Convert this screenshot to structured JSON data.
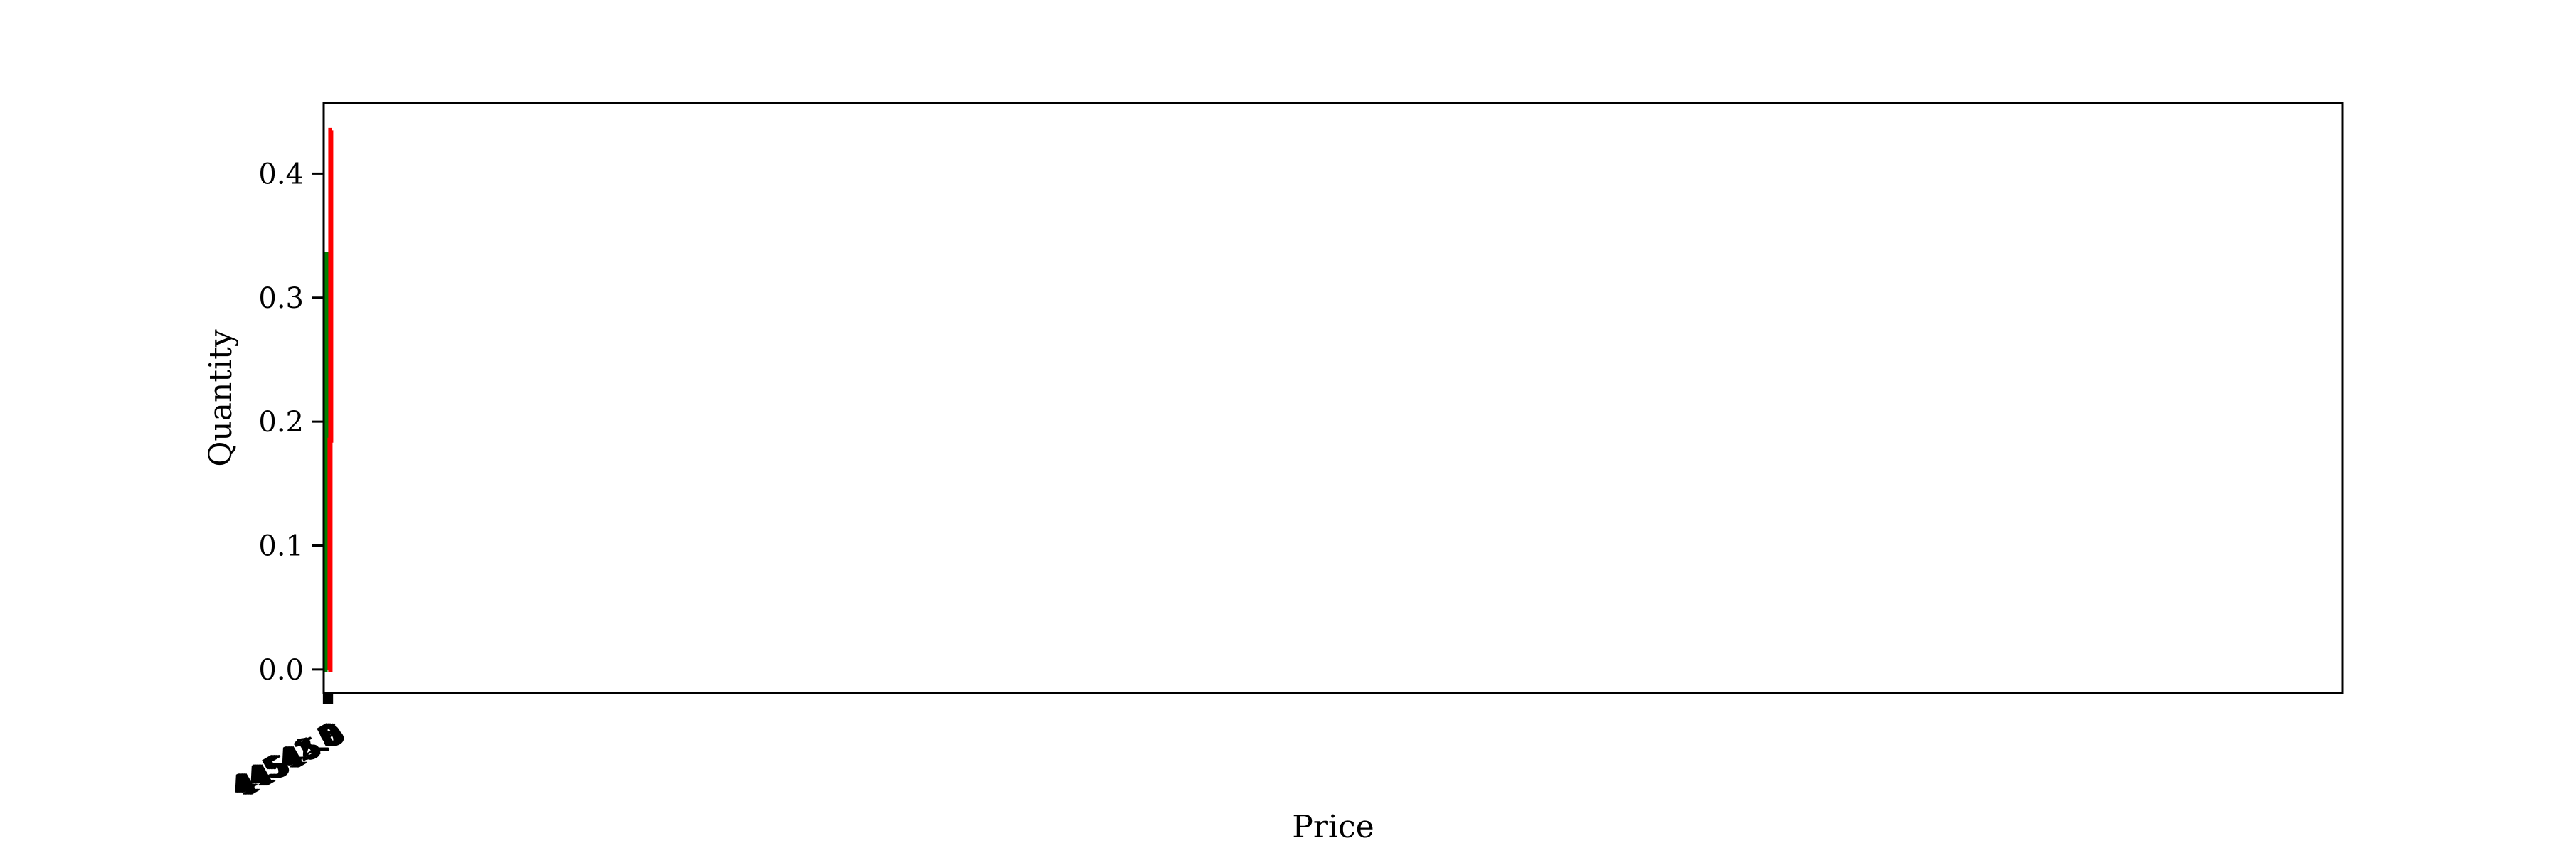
{
  "chart_data": {
    "type": "line",
    "step": true,
    "xlabel": "Price",
    "ylabel": "Quantity",
    "xlim": [
      44541.37,
      45545.77
    ],
    "ylim": [
      -0.019,
      0.457
    ],
    "xticks": [
      44541.5,
      44542.0,
      44542.5,
      44543.0,
      44543.5,
      44544.0,
      44544.5,
      44545.0,
      44545.5
    ],
    "xtick_labels": [
      "44541.5",
      "44542.0",
      "44542.5",
      "44543.0",
      "44543.5",
      "44544.0",
      "44544.5",
      "44545.0",
      "44545.5"
    ],
    "yticks": [
      0.0,
      0.1,
      0.2,
      0.3,
      0.4
    ],
    "ytick_labels": [
      "0.0",
      "0.1",
      "0.2",
      "0.3",
      "0.4"
    ],
    "grid": false,
    "series": [
      {
        "color": "#008000",
        "points": [
          [
            44541.57,
            0.335
          ],
          [
            44542.72,
            0.335
          ],
          [
            44542.72,
            0.25
          ],
          [
            44542.97,
            0.25
          ],
          [
            44542.97,
            0.0
          ],
          [
            44543.32,
            0.0
          ]
        ]
      },
      {
        "color": "#ff0000",
        "points": [
          [
            44543.62,
            0.0
          ],
          [
            44544.53,
            0.0
          ],
          [
            44544.53,
            0.185
          ],
          [
            44544.88,
            0.185
          ],
          [
            44544.88,
            0.435
          ],
          [
            44545.57,
            0.435
          ]
        ]
      }
    ]
  }
}
